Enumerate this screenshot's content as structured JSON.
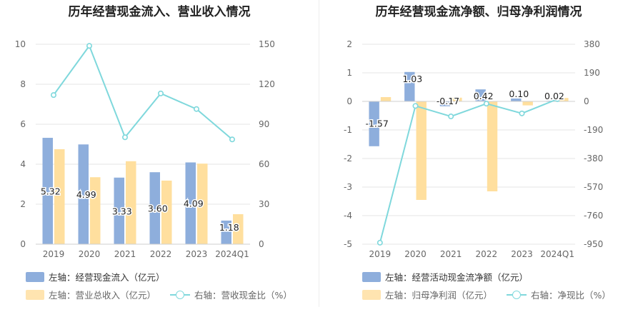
{
  "chart_data": [
    {
      "type": "bar",
      "title": "历年经营现金流入、营业收入情况",
      "categories": [
        "2019",
        "2020",
        "2021",
        "2022",
        "2023",
        "2024Q1"
      ],
      "y_left": {
        "min": 0,
        "max": 10,
        "ticks": [
          0,
          2,
          4,
          6,
          8,
          10
        ]
      },
      "y_right": {
        "min": 0,
        "max": 150,
        "ticks": [
          0,
          30,
          60,
          90,
          120,
          150
        ]
      },
      "series": [
        {
          "name": "左轴：经营现金流入（亿元）",
          "type": "bar",
          "axis": "left",
          "color": "#8eaedc",
          "values": [
            5.32,
            4.99,
            3.33,
            3.6,
            4.09,
            1.18
          ],
          "labels": [
            "5.32",
            "4.99",
            "3.33",
            "3.60",
            "4.09",
            "1.18"
          ]
        },
        {
          "name": "左轴：营业总收入（亿元）",
          "type": "bar",
          "axis": "left",
          "color": "#ffdf9e",
          "values": [
            4.75,
            3.35,
            4.15,
            3.18,
            4.03,
            1.5
          ]
        },
        {
          "name": "右轴：营收现金比（%）",
          "type": "line",
          "axis": "right",
          "color": "#7fd8dc",
          "values": [
            111.9,
            148.8,
            80.2,
            113.1,
            101.4,
            78.6
          ]
        }
      ],
      "grid": true,
      "legend": "bottom"
    },
    {
      "type": "bar",
      "title": "历年经营现金流净额、归母净利润情况",
      "categories": [
        "2019",
        "2020",
        "2021",
        "2022",
        "2023",
        "2024Q1"
      ],
      "y_left": {
        "min": -5,
        "max": 2,
        "ticks": [
          -5,
          -4,
          -3,
          -2,
          -1,
          0,
          1,
          2
        ]
      },
      "y_right": {
        "min": -950,
        "max": 380,
        "ticks": [
          -950,
          -760,
          -570,
          -380,
          -190,
          0,
          190,
          380
        ]
      },
      "series": [
        {
          "name": "左轴：经营活动现金流净额（亿元）",
          "type": "bar",
          "axis": "left",
          "color": "#8eaedc",
          "values": [
            -1.57,
            1.03,
            -0.17,
            0.42,
            0.1,
            0.02
          ],
          "labels": [
            "-1.57",
            "1.03",
            "-0.17",
            "0.42",
            "0.10",
            "0.02"
          ]
        },
        {
          "name": "左轴：归母净利润（亿元）",
          "type": "bar",
          "axis": "left",
          "color": "#ffdf9e",
          "values": [
            0.15,
            -3.45,
            0.13,
            -3.15,
            -0.14,
            0.12
          ]
        },
        {
          "name": "右轴：净现比（%）",
          "type": "line",
          "axis": "right",
          "color": "#7fd8dc",
          "values": [
            -940,
            -30,
            -100,
            -15,
            -80,
            15
          ]
        }
      ],
      "grid": true,
      "legend": "bottom"
    }
  ]
}
